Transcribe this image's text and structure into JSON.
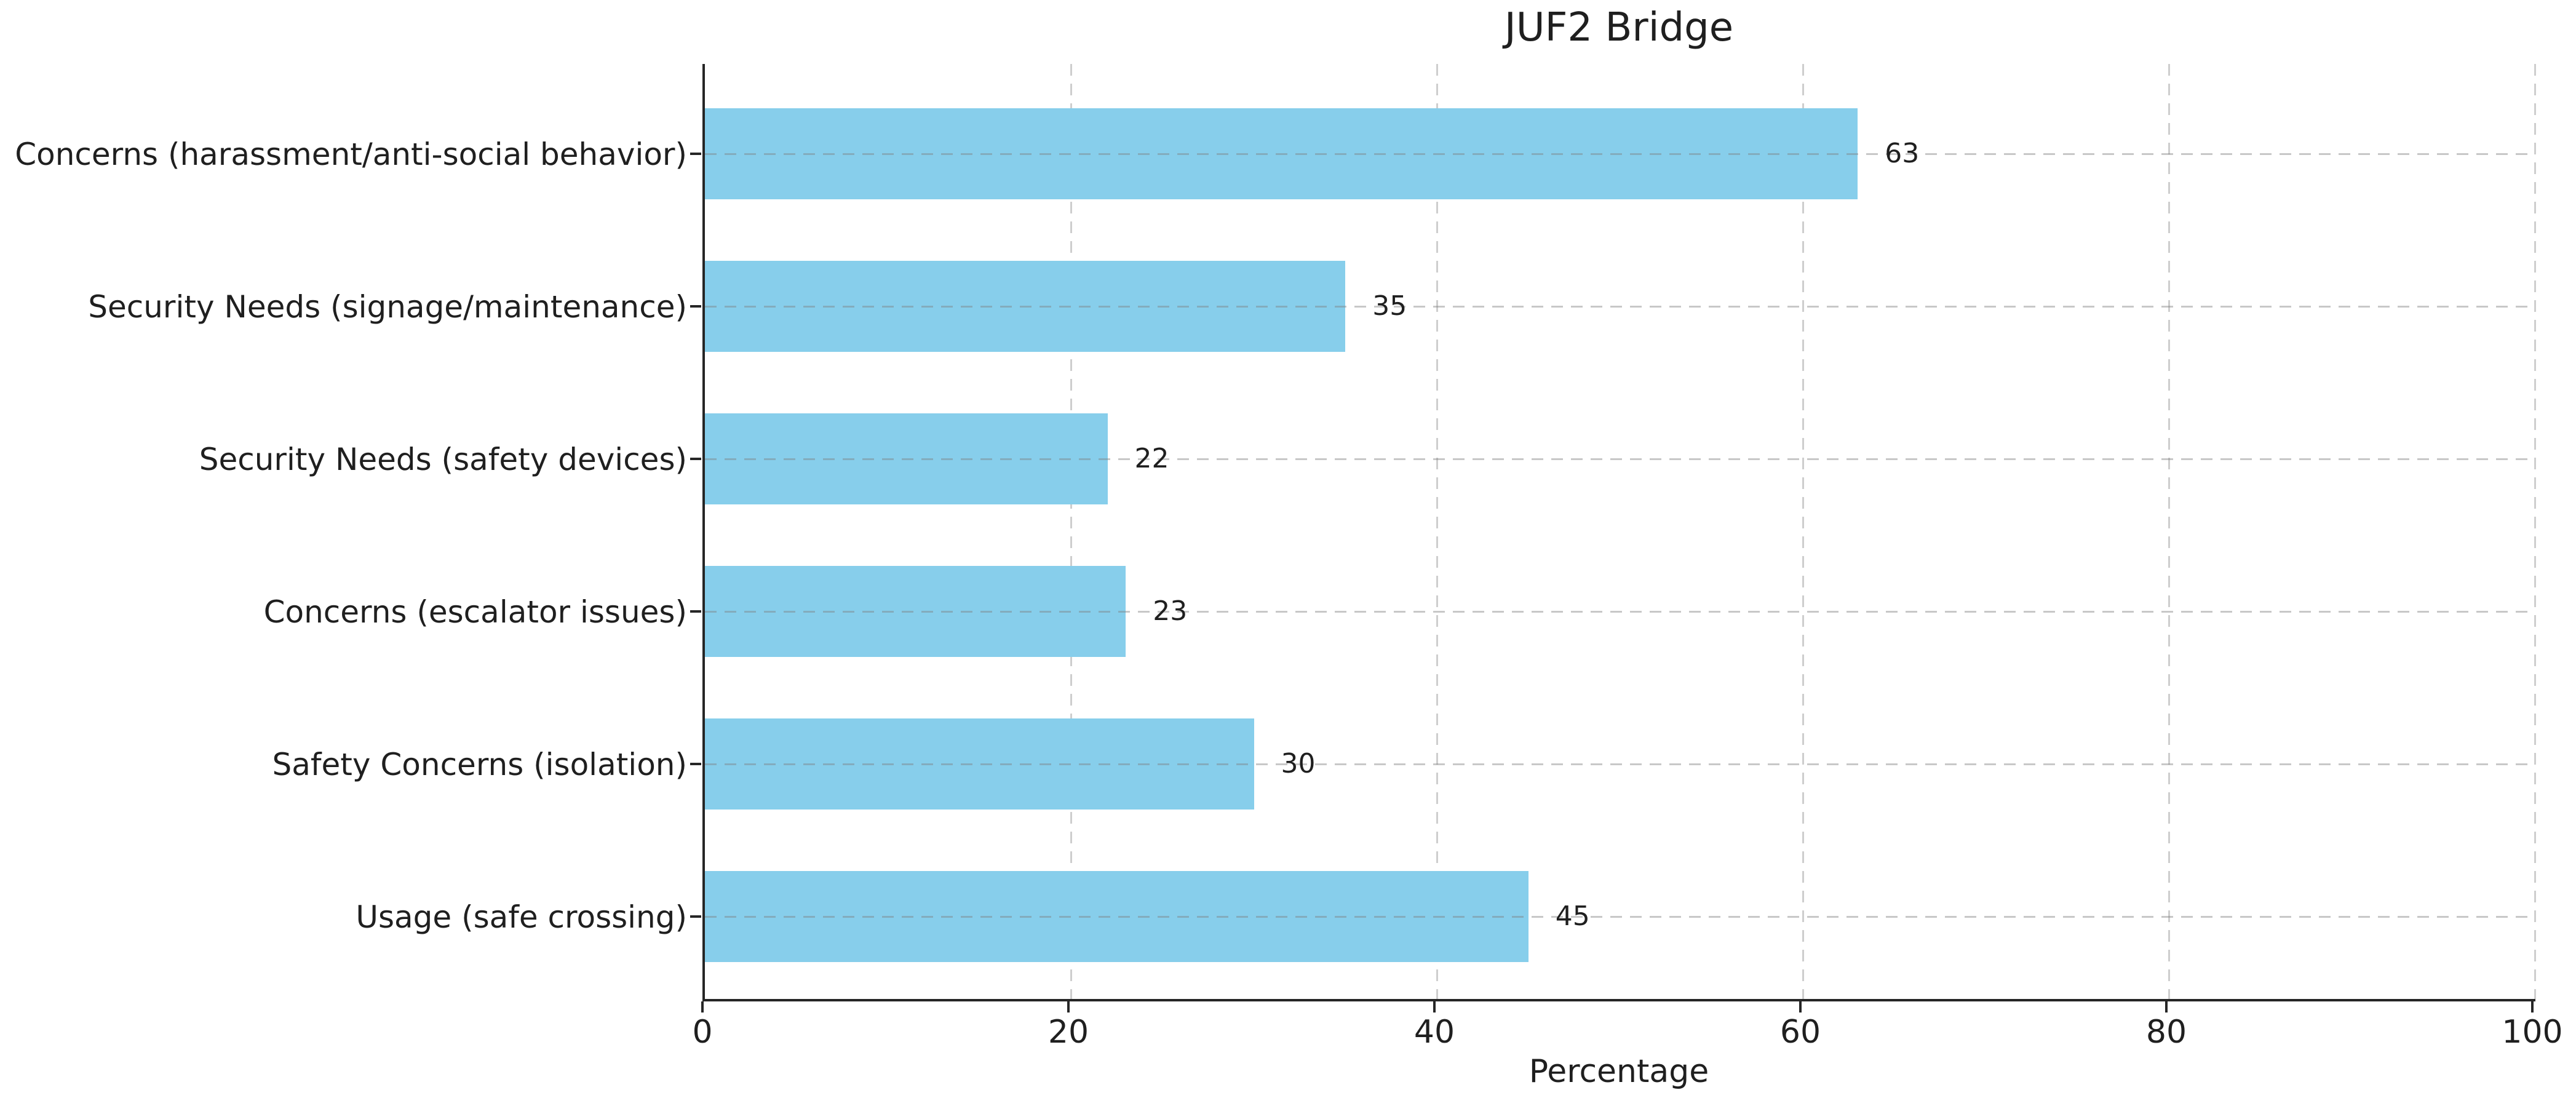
{
  "chart_data": {
    "type": "bar",
    "orientation": "horizontal",
    "title": "JUF2 Bridge",
    "xlabel": "Percentage",
    "ylabel": "",
    "categories": [
      "Concerns (harassment/anti-social behavior)",
      "Security Needs (signage/maintenance)",
      "Security Needs (safety devices)",
      "Concerns (escalator issues)",
      "Safety Concerns (isolation)",
      "Usage (safe crossing)"
    ],
    "values": [
      63,
      35,
      22,
      23,
      30,
      45
    ],
    "value_labels": [
      "63",
      "35",
      "22",
      "23",
      "30",
      "45"
    ],
    "xlim": [
      0,
      100
    ],
    "xticks": [
      0,
      20,
      40,
      60,
      80,
      100
    ],
    "xtick_labels": [
      "0",
      "20",
      "40",
      "60",
      "80",
      "100"
    ],
    "grid": "dashed, vertical at x-ticks and horizontal at bar centers",
    "legend": "none",
    "bar_color": "#87CEEB",
    "axis_color": "#262626",
    "text_color": "#1f1f1f"
  }
}
